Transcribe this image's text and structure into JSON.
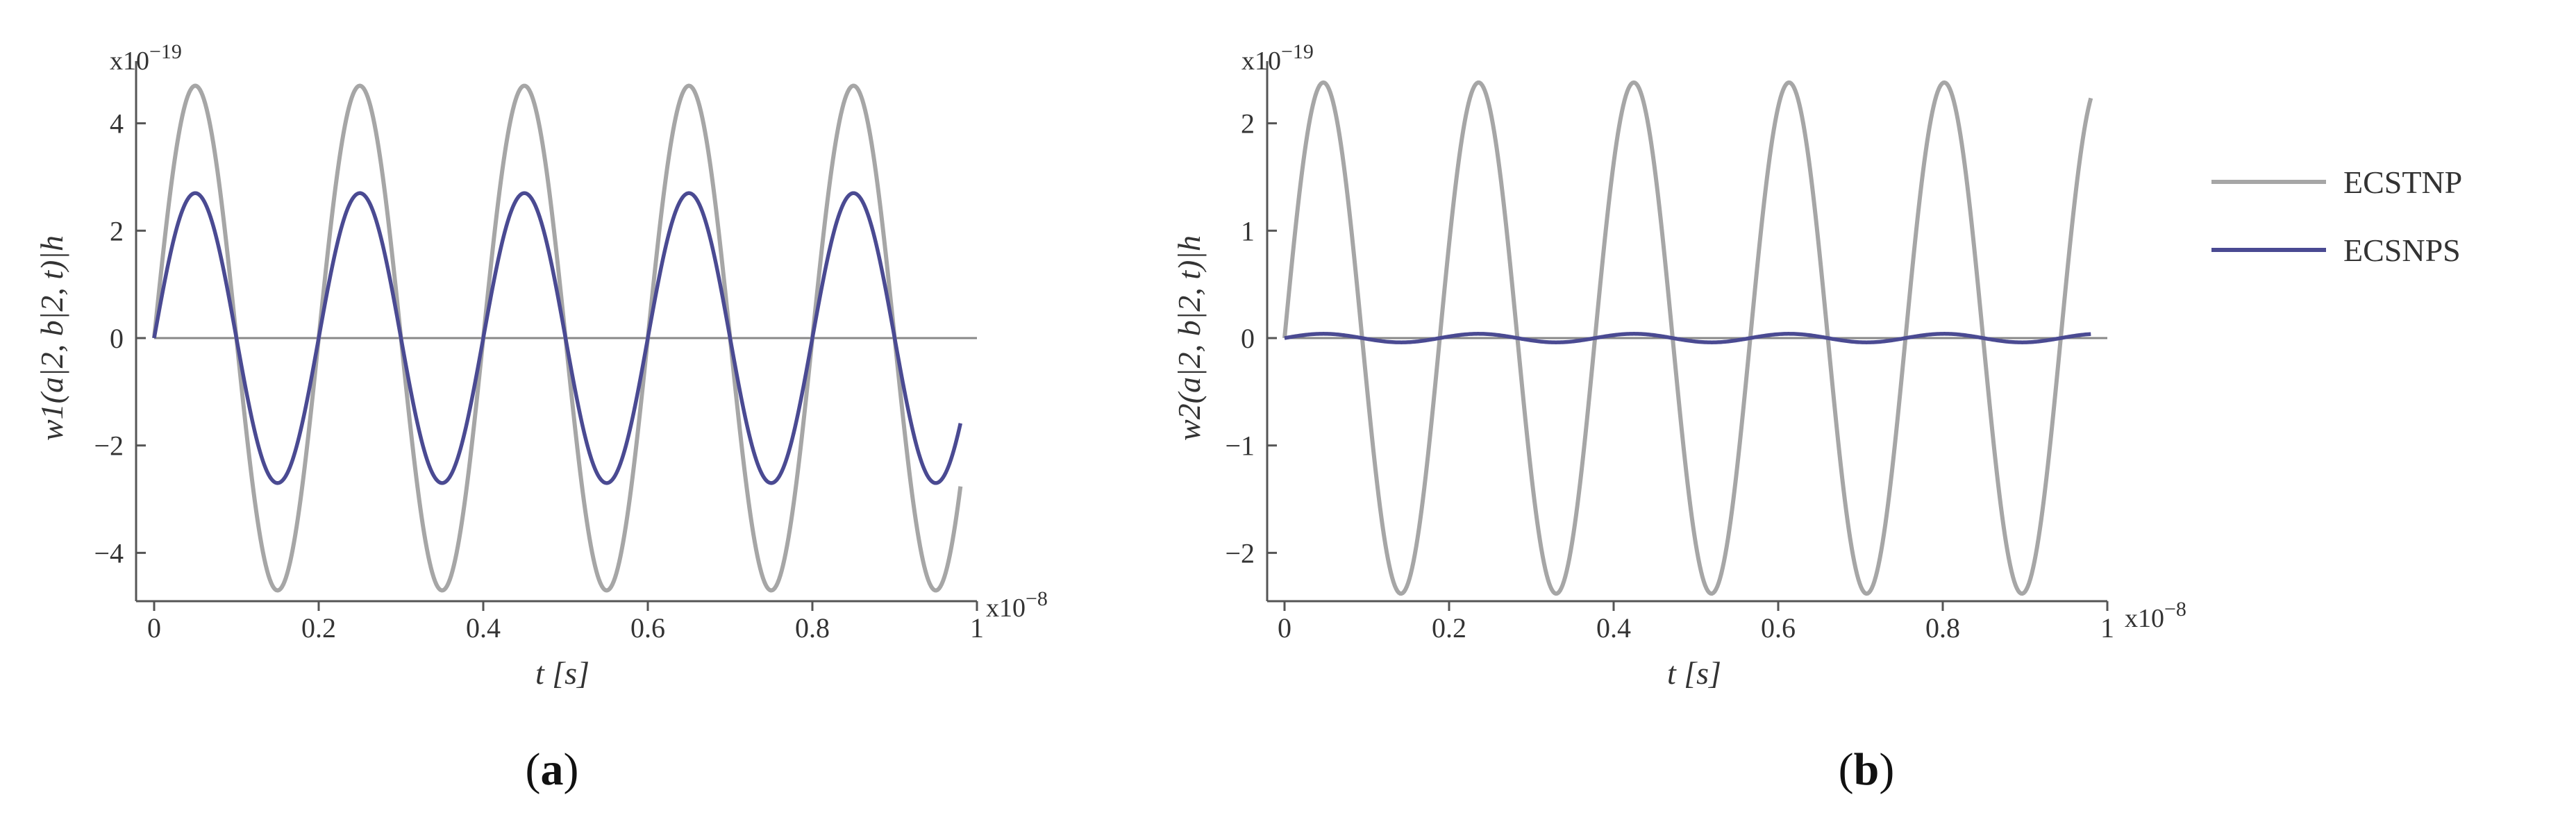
{
  "legend": [
    {
      "name": "ECSTNP",
      "color": "#a6a6a6"
    },
    {
      "name": "ECSNPS",
      "color": "#4a4a92"
    }
  ],
  "chart_data": [
    {
      "type": "line",
      "panel": "a",
      "caption": {
        "open": "(",
        "letter": "a",
        "close": ")"
      },
      "ylabel": "w1(a|2, b|2, t)|h",
      "xlabel": "t [s]",
      "x_exponent_label": "x10",
      "x_exponent": "−8",
      "y_exponent_label": "x10",
      "y_exponent": "−19",
      "xlim": [
        0,
        1
      ],
      "ylim": [
        -4.9,
        4.9
      ],
      "xticks": [
        0,
        0.2,
        0.4,
        0.6,
        0.8,
        1
      ],
      "xtick_labels": [
        "0",
        "0.2",
        "0.4",
        "0.6",
        "0.8",
        "1"
      ],
      "yticks": [
        -4,
        -2,
        0,
        2,
        4
      ],
      "ytick_labels": [
        "−4",
        "−2",
        "0",
        "2",
        "4"
      ],
      "zero_line": true,
      "grid": false,
      "series": [
        {
          "name": "ECSTNP",
          "color": "#a6a6a6",
          "function": "A*sin(2*pi*f*x)",
          "amplitude": 4.7,
          "frequency": 5,
          "x_end": 0.98
        },
        {
          "name": "ECSNPS",
          "color": "#4a4a92",
          "function": "A*sin(2*pi*f*x)",
          "amplitude": 2.7,
          "frequency": 5,
          "x_end": 0.98
        }
      ]
    },
    {
      "type": "line",
      "panel": "b",
      "caption": {
        "open": "(",
        "letter": "b",
        "close": ")"
      },
      "ylabel": "w2(a|2, b|2, t)|h",
      "xlabel": "t [s]",
      "x_exponent_label": "x10",
      "x_exponent": "−8",
      "y_exponent_label": "x10",
      "y_exponent": "−19",
      "xlim": [
        0,
        1
      ],
      "ylim": [
        -2.45,
        2.45
      ],
      "xticks": [
        0,
        0.2,
        0.4,
        0.6,
        0.8,
        1
      ],
      "xtick_labels": [
        "0",
        "0.2",
        "0.4",
        "0.6",
        "0.8",
        "1"
      ],
      "yticks": [
        -2,
        -1,
        0,
        1,
        2
      ],
      "ytick_labels": [
        "−2",
        "−1",
        "0",
        "1",
        "2"
      ],
      "zero_line": true,
      "grid": false,
      "series": [
        {
          "name": "ECSTNP",
          "color": "#a6a6a6",
          "function": "A*sin(2*pi*f*x)",
          "amplitude": 2.38,
          "frequency": 5.3,
          "x_end": 0.98
        },
        {
          "name": "ECSNPS",
          "color": "#4a4a92",
          "function": "A*sin(2*pi*f*x)",
          "amplitude": 0.04,
          "frequency": 5.3,
          "x_end": 0.98
        }
      ]
    }
  ]
}
